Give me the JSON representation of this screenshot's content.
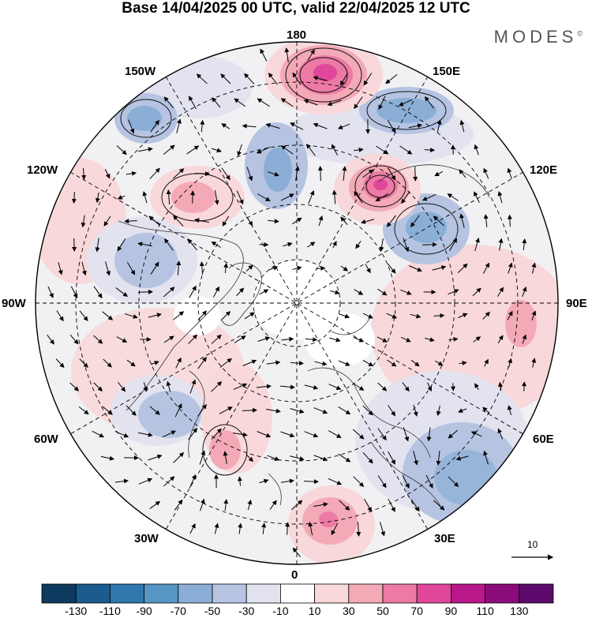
{
  "header": {
    "title": "Base 14/04/2025 00 UTC, valid 22/04/2025 12 UTC",
    "brand": "MODES",
    "brand_mark": "©"
  },
  "map": {
    "projection": "polar-stereographic-north",
    "longitude_labels": {
      "top": "180",
      "bottom": "0",
      "left": "90W",
      "right": "90E",
      "upper_left_1": "150W",
      "upper_left_2": "120W",
      "upper_right_1": "150E",
      "upper_right_2": "120E",
      "lower_left_1": "60W",
      "lower_left_2": "30W",
      "lower_right_1": "60E",
      "lower_right_2": "30E"
    },
    "reference_vector": "10"
  },
  "colorbar": {
    "labels": [
      "-130",
      "-110",
      "-90",
      "-70",
      "-50",
      "-30",
      "-10",
      "10",
      "30",
      "50",
      "70",
      "90",
      "110",
      "130"
    ],
    "colors": [
      "#0d3a5e",
      "#1b5b8d",
      "#2f77ad",
      "#5596c4",
      "#8aaed6",
      "#b6c4e2",
      "#e2e3ef",
      "#ffffff",
      "#f8d8da",
      "#f3aab6",
      "#ec7aa4",
      "#e0479a",
      "#b8188a",
      "#8c0c7c",
      "#5c0a6c"
    ]
  }
}
